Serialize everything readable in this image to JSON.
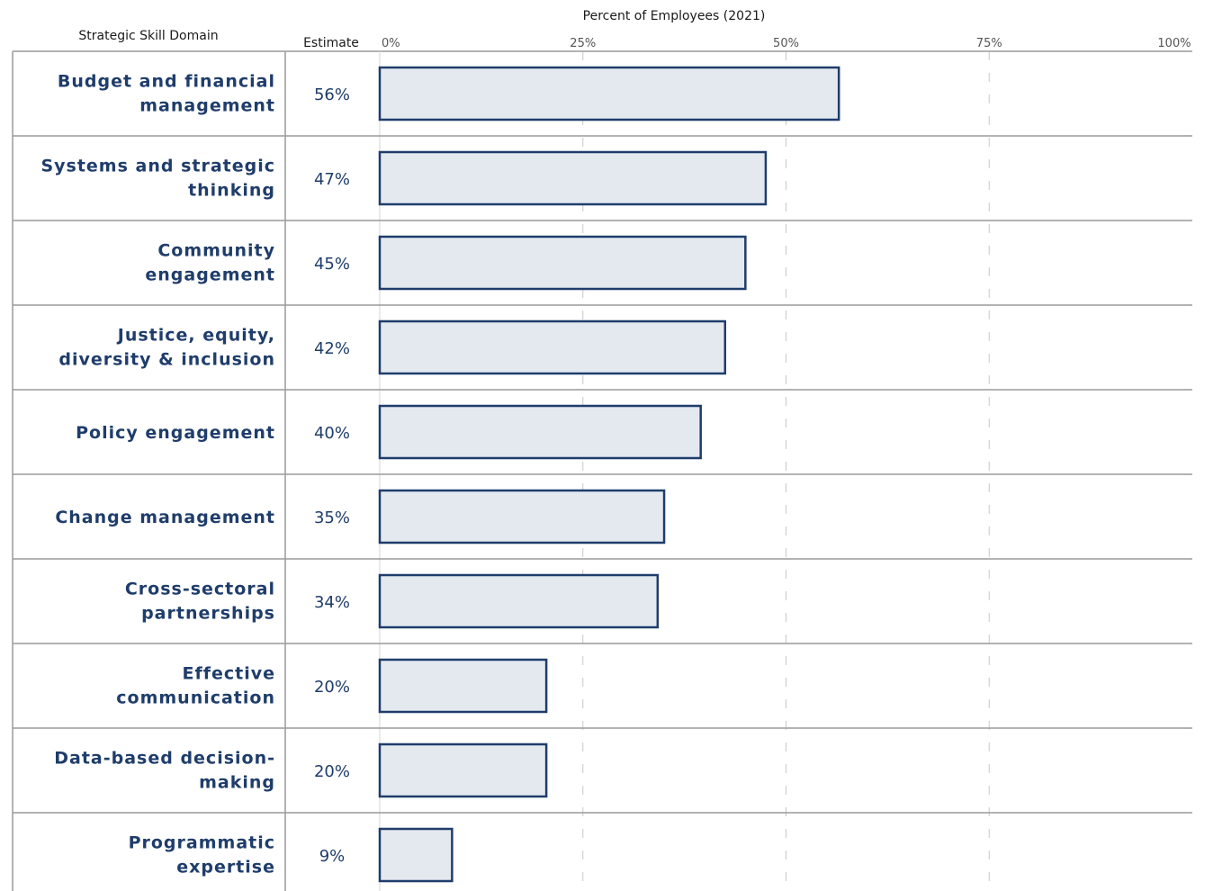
{
  "chart_data": {
    "type": "bar",
    "orientation": "horizontal",
    "title": "Percent of Employees (2021)",
    "category_header": "Strategic Skill Domain",
    "estimate_header": "Estimate",
    "categories": [
      [
        "Budget and financial",
        "management"
      ],
      [
        "Systems and strategic",
        "thinking"
      ],
      [
        "Community",
        "engagement"
      ],
      [
        "Justice, equity,",
        "diversity & inclusion"
      ],
      [
        "Policy engagement"
      ],
      [
        "Change management"
      ],
      [
        "Cross-sectoral",
        "partnerships"
      ],
      [
        "Effective",
        "communication"
      ],
      [
        "Data-based decision-",
        "making"
      ],
      [
        "Programmatic",
        "expertise"
      ]
    ],
    "values": [
      56.5,
      47.5,
      45,
      42.5,
      39.5,
      35,
      34.2,
      20.5,
      20.5,
      8.9
    ],
    "estimate_labels": [
      "56%",
      "47%",
      "45%",
      "42%",
      "40%",
      "35%",
      "34%",
      "20%",
      "20%",
      "9%"
    ],
    "xlim": [
      0,
      100
    ],
    "x_ticks": [
      0,
      25,
      50,
      75,
      100
    ],
    "x_tick_labels": [
      "0%",
      "25%",
      "50%",
      "75%",
      "100%"
    ],
    "grid": "vertical dashed",
    "colors": {
      "bar_fill": "#e4e9f0",
      "bar_stroke": "#1f3d6b",
      "label_text": "#1f3d6b",
      "grid": "#c8c8c8",
      "row_rule": "#9a9a9a"
    }
  }
}
